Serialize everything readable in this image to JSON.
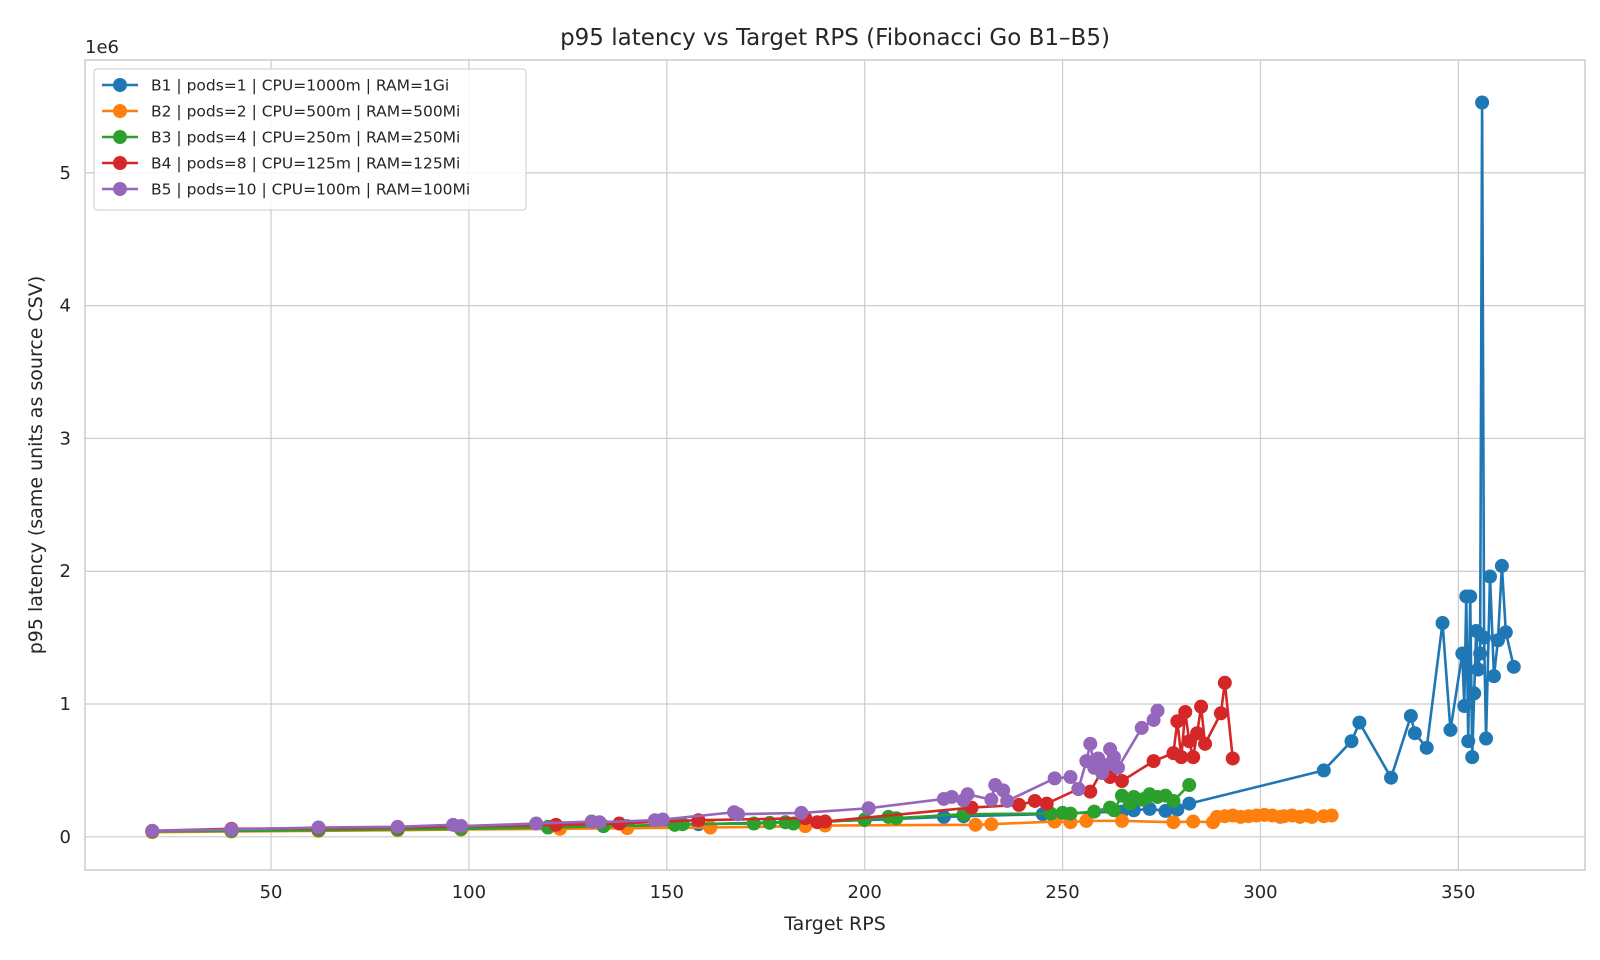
{
  "chart_data": {
    "type": "line",
    "title": "p95 latency vs Target RPS (Fibonacci Go B1–B5)",
    "xlabel": "Target RPS",
    "ylabel": "p95 latency (same units as source CSV)",
    "y_offset_label": "1e6",
    "xlim": [
      3,
      382
    ],
    "ylim": [
      -250000,
      5850000
    ],
    "x_ticks": [
      50,
      100,
      150,
      200,
      250,
      300,
      350
    ],
    "x_tick_labels": [
      "50",
      "100",
      "150",
      "200",
      "250",
      "300",
      "350"
    ],
    "y_ticks": [
      0,
      1000000,
      2000000,
      3000000,
      4000000,
      5000000
    ],
    "y_tick_labels": [
      "0",
      "1",
      "2",
      "3",
      "4",
      "5"
    ],
    "grid": true,
    "legend_position": "top-left",
    "series": [
      {
        "name": "B1 | pods=1 | CPU=1000m | RAM=1Gi",
        "color": "#1f77b4",
        "x": [
          20,
          40,
          62,
          82,
          98,
          120,
          140,
          158,
          180,
          200,
          220,
          225,
          245,
          265,
          268,
          272,
          276,
          279,
          282,
          316,
          323,
          325,
          333,
          338,
          339,
          342,
          346,
          348,
          351,
          351.5,
          352,
          352.5,
          353,
          353.5,
          354,
          354.5,
          355,
          355.5,
          356,
          356.5,
          357,
          358,
          359,
          360,
          361,
          362,
          364
        ],
        "y": [
          40000,
          50000,
          55000,
          60000,
          65000,
          75000,
          80000,
          95000,
          110000,
          125000,
          150000,
          155000,
          170000,
          190000,
          200000,
          210000,
          195000,
          205000,
          250000,
          500000,
          720000,
          860000,
          445000,
          910000,
          780000,
          670000,
          1610000,
          805000,
          1380000,
          985000,
          1810000,
          720000,
          1810000,
          600000,
          1080000,
          1550000,
          1260000,
          1380000,
          5530000,
          1500000,
          740000,
          1960000,
          1210000,
          1480000,
          2040000,
          1540000,
          1280000
        ]
      },
      {
        "name": "B2 | pods=2 | CPU=500m | RAM=500Mi",
        "color": "#ff7f0e",
        "x": [
          20,
          40,
          62,
          82,
          98,
          123,
          140,
          161,
          185,
          190,
          228,
          232,
          248,
          252,
          256,
          265,
          278,
          283,
          288,
          289,
          291,
          293,
          295,
          297,
          299,
          301,
          303,
          305,
          306,
          308,
          310,
          312,
          313,
          316,
          318
        ],
        "y": [
          35000,
          40000,
          45000,
          50000,
          55000,
          60000,
          65000,
          70000,
          80000,
          85000,
          90000,
          95000,
          115000,
          110000,
          120000,
          120000,
          110000,
          115000,
          110000,
          150000,
          155000,
          160000,
          150000,
          155000,
          160000,
          165000,
          160000,
          150000,
          155000,
          160000,
          150000,
          160000,
          150000,
          155000,
          160000
        ]
      },
      {
        "name": "B3 | pods=4 | CPU=250m | RAM=250Mi",
        "color": "#2ca02c",
        "x": [
          20,
          40,
          62,
          82,
          98,
          120,
          134,
          152,
          154,
          172,
          176,
          180,
          182,
          200,
          206,
          208,
          225,
          247,
          250,
          252,
          258,
          262,
          263,
          265,
          267,
          268,
          270,
          271,
          272,
          274,
          276,
          278,
          282
        ],
        "y": [
          40000,
          45000,
          50000,
          55000,
          60000,
          70000,
          80000,
          90000,
          95000,
          100000,
          105000,
          110000,
          100000,
          130000,
          150000,
          140000,
          170000,
          175000,
          180000,
          175000,
          190000,
          220000,
          200000,
          310000,
          250000,
          300000,
          280000,
          290000,
          320000,
          300000,
          310000,
          270000,
          390000
        ]
      },
      {
        "name": "B4 | pods=8 | CPU=125m | RAM=125Mi",
        "color": "#d62728",
        "x": [
          20,
          40,
          62,
          82,
          98,
          122,
          138,
          158,
          185,
          188,
          190,
          227,
          239,
          243,
          246,
          254,
          257,
          260,
          262,
          265,
          273,
          278,
          279,
          280,
          281,
          282,
          283,
          284,
          285,
          286,
          290,
          291,
          293
        ],
        "y": [
          45000,
          60000,
          65000,
          70000,
          80000,
          90000,
          100000,
          125000,
          140000,
          110000,
          115000,
          220000,
          240000,
          270000,
          250000,
          360000,
          340000,
          500000,
          450000,
          420000,
          570000,
          630000,
          870000,
          600000,
          940000,
          720000,
          600000,
          780000,
          980000,
          700000,
          930000,
          1160000,
          590000
        ]
      },
      {
        "name": "B5 | pods=10 | CPU=100m | RAM=100Mi",
        "color": "#9467bd",
        "x": [
          20,
          40,
          62,
          82,
          96,
          98,
          117,
          131,
          133,
          147,
          149,
          167,
          168,
          184,
          201,
          220,
          222,
          225,
          226,
          232,
          233,
          235,
          236,
          248,
          252,
          254,
          256,
          257,
          258,
          259,
          260,
          261,
          262,
          263,
          264,
          270,
          273,
          274
        ],
        "y": [
          45000,
          55000,
          70000,
          75000,
          90000,
          80000,
          100000,
          115000,
          110000,
          125000,
          130000,
          185000,
          170000,
          180000,
          215000,
          285000,
          300000,
          275000,
          320000,
          280000,
          390000,
          350000,
          270000,
          440000,
          450000,
          360000,
          570000,
          700000,
          520000,
          590000,
          480000,
          540000,
          660000,
          600000,
          520000,
          820000,
          880000,
          950000
        ]
      }
    ]
  }
}
